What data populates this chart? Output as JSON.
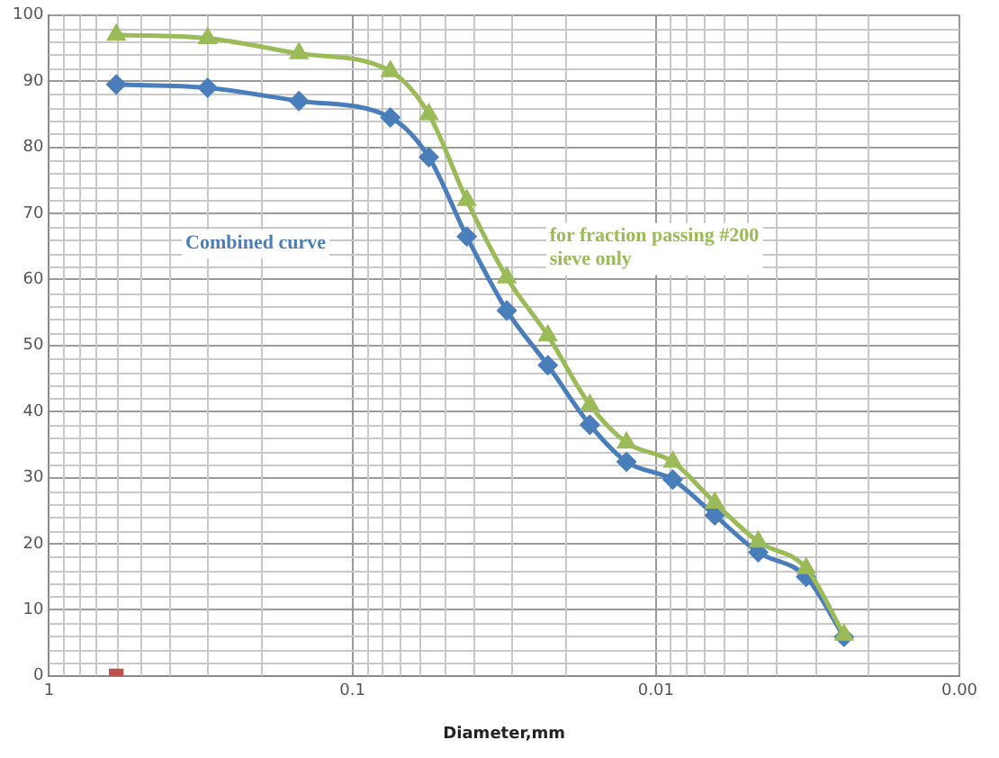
{
  "chart_data": {
    "type": "line",
    "xlabel": "Diameter,mm",
    "log": "x",
    "grid": true,
    "legend": false,
    "xlim": [
      1,
      0.001
    ],
    "xticks": [
      1,
      0.1,
      0.01,
      {
        "value": 0.001,
        "label": "0.00"
      }
    ],
    "ylim": [
      0,
      100
    ],
    "yticks": [
      0,
      10,
      20,
      30,
      40,
      50,
      60,
      70,
      80,
      90,
      100
    ],
    "series": [
      {
        "name": "Combined curve",
        "color": "#4a7ebb",
        "marker": "diamond",
        "x": [
          0.6,
          0.3,
          0.15,
          0.075,
          0.056,
          0.042,
          0.031,
          0.0227,
          0.0165,
          0.0125,
          0.0088,
          0.0064,
          0.0046,
          0.0032,
          0.0024
        ],
        "values": [
          89.5,
          89,
          87,
          84.5,
          78.5,
          66.5,
          55.3,
          47,
          38,
          32.4,
          29.7,
          24.3,
          18.7,
          15,
          5.9
        ]
      },
      {
        "name": "for fraction passing #200 sieve only",
        "color": "#9bbb59",
        "marker": "triangle",
        "x": [
          0.6,
          0.3,
          0.15,
          0.075,
          0.056,
          0.042,
          0.031,
          0.0227,
          0.0165,
          0.0125,
          0.0088,
          0.0064,
          0.0046,
          0.0032,
          0.0024
        ],
        "values": [
          97,
          96.5,
          94.2,
          91.5,
          85,
          72,
          60.3,
          51.5,
          41,
          35.3,
          32.4,
          26.2,
          20.3,
          16.3,
          6.2
        ]
      },
      {
        "type": "scatter",
        "color": "#c0504d",
        "marker": "square",
        "x": [
          0.6
        ],
        "values": [
          0
        ]
      }
    ]
  }
}
